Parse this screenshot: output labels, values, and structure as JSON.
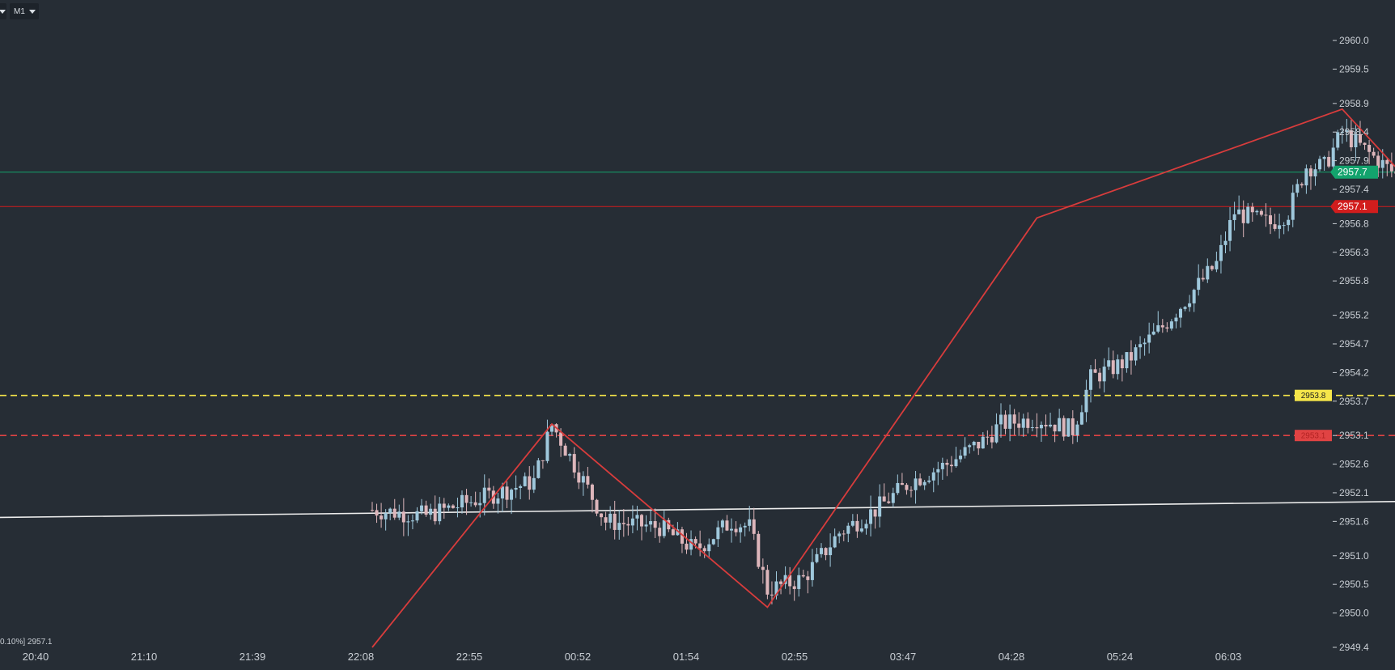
{
  "toolbar": {
    "timeframe": "M1"
  },
  "status_text": "0.10%] 2957.1",
  "colors": {
    "background": "#262d35",
    "text": "#c9ced4",
    "bull_candle": "#9fc8dc",
    "bear_candle": "#ddb6bb",
    "zigzag": "#d83c3c",
    "trendline": "#ececec",
    "ask_line": "#13a36d",
    "bid_line": "#d21d1d",
    "yellow_level": "#f6e64a",
    "red_level": "#e04343"
  },
  "chart_data": {
    "type": "candlestick",
    "timeframe": "M1",
    "ylim": [
      2949.4,
      2960.0
    ],
    "y_ticks": [
      "2960.0",
      "2959.5",
      "2958.9",
      "2958.4",
      "2957.9",
      "2957.4",
      "2956.8",
      "2956.3",
      "2955.8",
      "2955.2",
      "2954.7",
      "2954.2",
      "2953.7",
      "2953.1",
      "2952.6",
      "2952.1",
      "2951.6",
      "2951.0",
      "2950.5",
      "2950.0",
      "2949.4"
    ],
    "x_ticks": [
      "20:40",
      "21:10",
      "21:39",
      "22:08",
      "22:55",
      "00:52",
      "01:54",
      "02:55",
      "03:47",
      "04:28",
      "05:24",
      "06:03"
    ],
    "price_levels": [
      {
        "label": "2957.7",
        "price": 2957.7,
        "style": "solid",
        "role": "ask",
        "color": "#13a36d"
      },
      {
        "label": "2957.1",
        "price": 2957.1,
        "style": "solid",
        "role": "bid",
        "color": "#d21d1d"
      },
      {
        "label": "2953.8",
        "price": 2953.8,
        "style": "dashed",
        "role": "level",
        "color": "#f6e64a"
      },
      {
        "label": "2953.1",
        "price": 2953.1,
        "style": "dashed",
        "role": "level",
        "color": "#e04343"
      }
    ],
    "zigzag": [
      {
        "t": 0.0,
        "price": 2949.4
      },
      {
        "t": 10.0,
        "price": 2953.3
      },
      {
        "t": 22.0,
        "price": 2950.1
      },
      {
        "t": 37.0,
        "price": 2956.9
      },
      {
        "t": 54.0,
        "price": 2958.8
      },
      {
        "t": 59.0,
        "price": 2957.1
      }
    ],
    "trendline": [
      {
        "t": -40.0,
        "price": 2951.6
      },
      {
        "t": 100.0,
        "price": 2952.1
      }
    ],
    "candle_anchors": [
      {
        "t": 0,
        "price": 2951.8
      },
      {
        "t": 3,
        "price": 2951.7
      },
      {
        "t": 6,
        "price": 2952.0
      },
      {
        "t": 9,
        "price": 2952.3
      },
      {
        "t": 10,
        "price": 2953.3
      },
      {
        "t": 13,
        "price": 2951.6
      },
      {
        "t": 16,
        "price": 2951.5
      },
      {
        "t": 18,
        "price": 2951.1
      },
      {
        "t": 20,
        "price": 2951.6
      },
      {
        "t": 21,
        "price": 2951.5
      },
      {
        "t": 22,
        "price": 2950.4
      },
      {
        "t": 24,
        "price": 2950.6
      },
      {
        "t": 26,
        "price": 2951.4
      },
      {
        "t": 28,
        "price": 2951.8
      },
      {
        "t": 30,
        "price": 2952.3
      },
      {
        "t": 32,
        "price": 2952.6
      },
      {
        "t": 34,
        "price": 2953.0
      },
      {
        "t": 35,
        "price": 2953.3
      },
      {
        "t": 37,
        "price": 2953.4
      },
      {
        "t": 39,
        "price": 2953.2
      },
      {
        "t": 40,
        "price": 2954.1
      },
      {
        "t": 42,
        "price": 2954.4
      },
      {
        "t": 44,
        "price": 2955.0
      },
      {
        "t": 47,
        "price": 2956.1
      },
      {
        "t": 48,
        "price": 2957.0
      },
      {
        "t": 50,
        "price": 2956.8
      },
      {
        "t": 51,
        "price": 2957.0
      },
      {
        "t": 52,
        "price": 2957.8
      },
      {
        "t": 53,
        "price": 2957.8
      },
      {
        "t": 54,
        "price": 2958.4
      },
      {
        "t": 56,
        "price": 2957.9
      },
      {
        "t": 58,
        "price": 2957.4
      },
      {
        "t": 59,
        "price": 2957.1
      }
    ]
  }
}
